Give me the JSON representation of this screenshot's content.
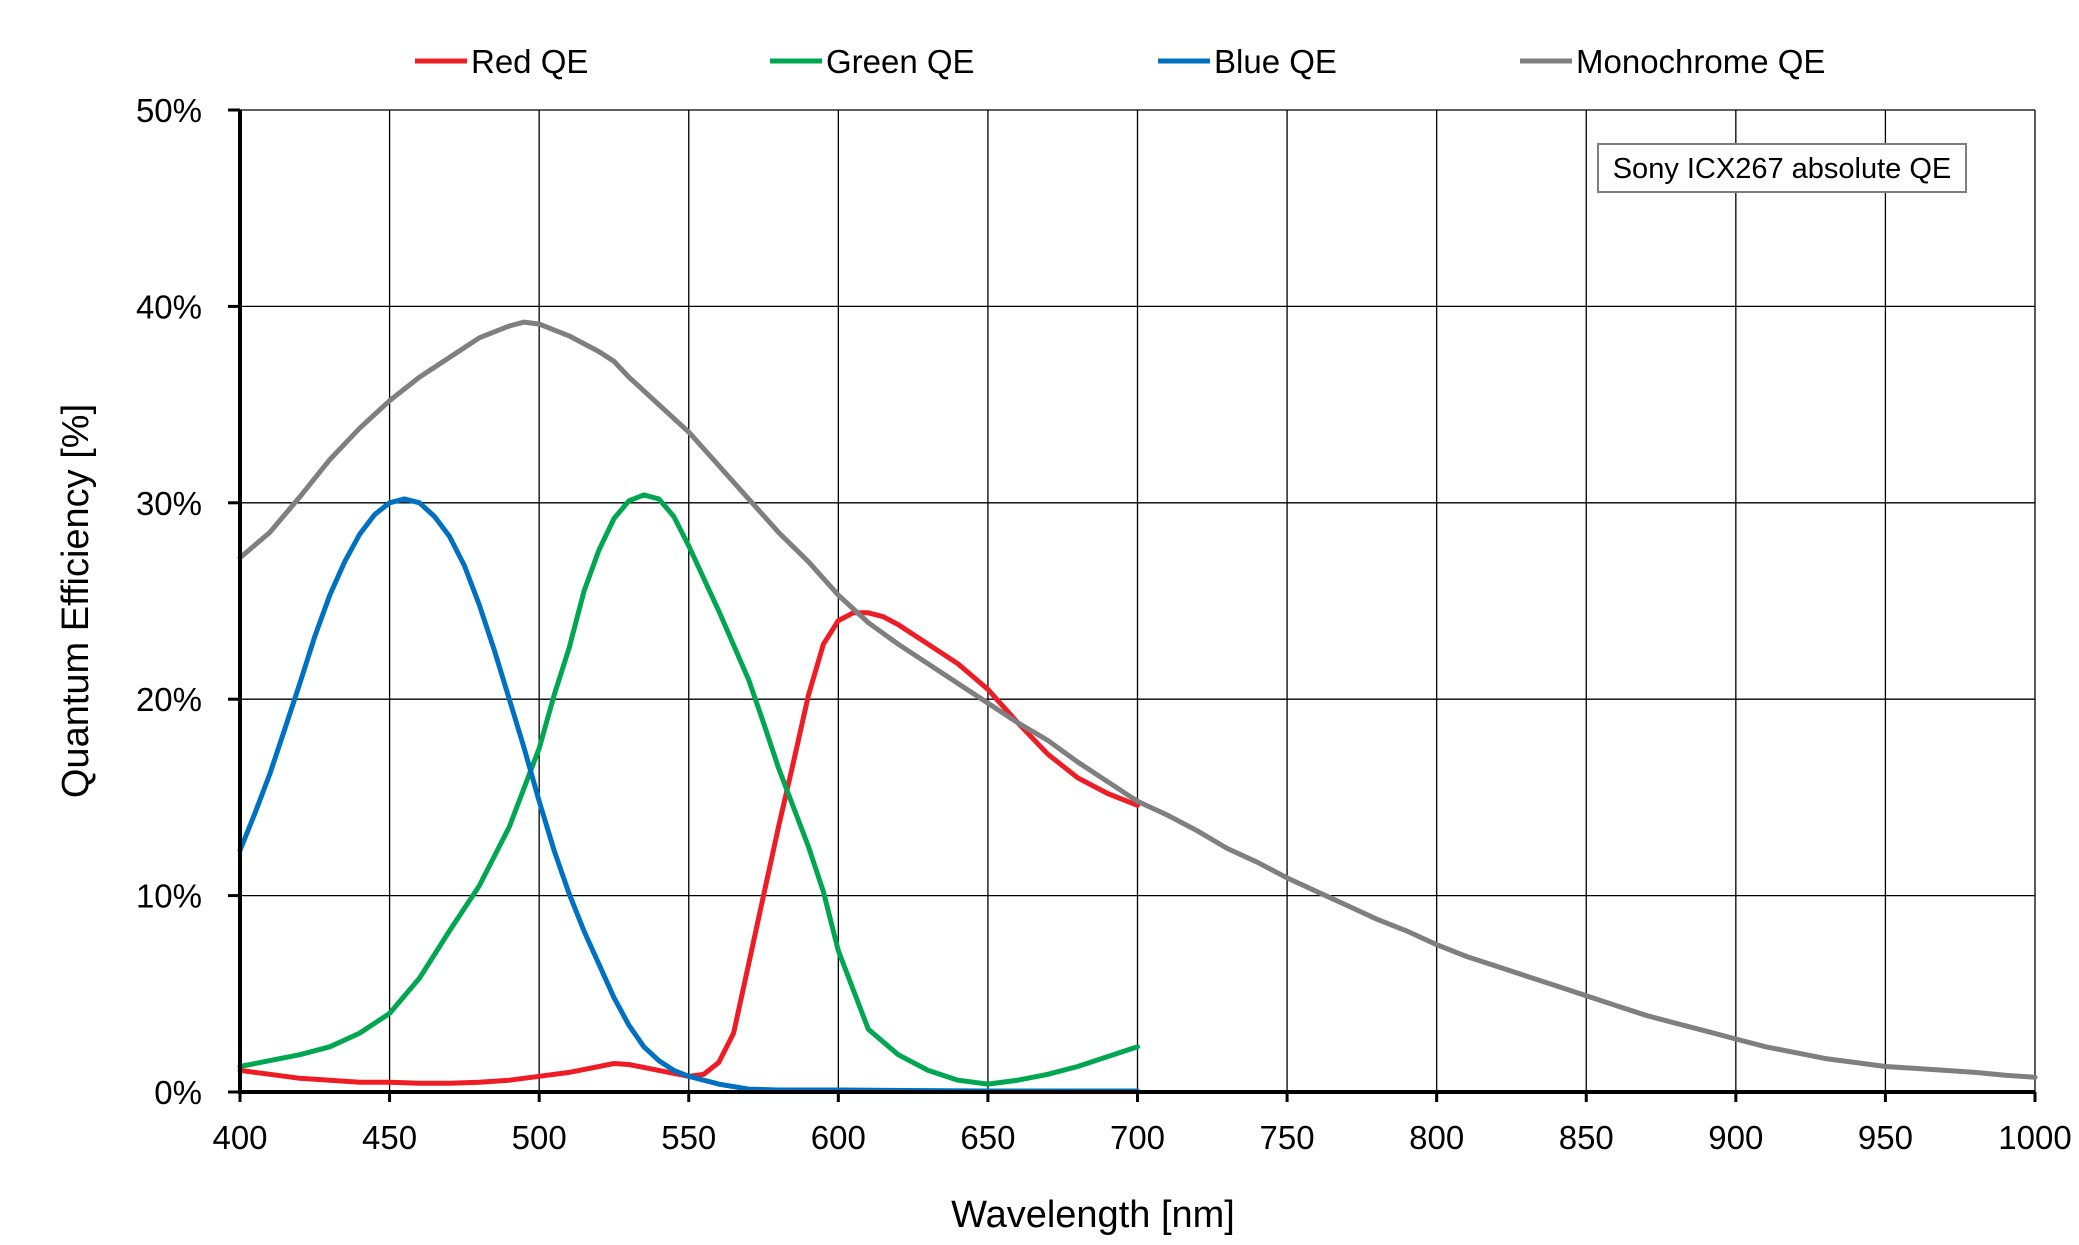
{
  "chart_data": {
    "type": "line",
    "title": "",
    "xlabel": "Wavelength [nm]",
    "ylabel": "Quantum Efficiency [%]",
    "xlim": [
      400,
      1000
    ],
    "ylim": [
      0,
      50
    ],
    "x_ticks": [
      400,
      450,
      500,
      550,
      600,
      650,
      700,
      750,
      800,
      850,
      900,
      950,
      1000
    ],
    "y_ticks": [
      0,
      10,
      20,
      30,
      40,
      50
    ],
    "y_tick_labels": [
      "0%",
      "10%",
      "20%",
      "30%",
      "40%",
      "50%"
    ],
    "grid": true,
    "legend_position": "top",
    "annotation": "Sony ICX267 absolute QE",
    "series": [
      {
        "name": "Red QE",
        "color": "#ee1c25",
        "points": [
          [
            400,
            1.1
          ],
          [
            410,
            0.9
          ],
          [
            420,
            0.7
          ],
          [
            430,
            0.6
          ],
          [
            440,
            0.5
          ],
          [
            450,
            0.5
          ],
          [
            460,
            0.45
          ],
          [
            470,
            0.45
          ],
          [
            480,
            0.5
          ],
          [
            490,
            0.6
          ],
          [
            500,
            0.8
          ],
          [
            510,
            1.0
          ],
          [
            520,
            1.3
          ],
          [
            525,
            1.45
          ],
          [
            530,
            1.4
          ],
          [
            540,
            1.1
          ],
          [
            550,
            0.8
          ],
          [
            555,
            0.9
          ],
          [
            560,
            1.5
          ],
          [
            565,
            3.0
          ],
          [
            570,
            6.5
          ],
          [
            575,
            10.0
          ],
          [
            580,
            13.5
          ],
          [
            585,
            16.8
          ],
          [
            590,
            20.2
          ],
          [
            595,
            22.8
          ],
          [
            600,
            24.0
          ],
          [
            605,
            24.4
          ],
          [
            610,
            24.4
          ],
          [
            615,
            24.2
          ],
          [
            620,
            23.8
          ],
          [
            630,
            22.8
          ],
          [
            640,
            21.8
          ],
          [
            650,
            20.5
          ],
          [
            660,
            18.8
          ],
          [
            670,
            17.2
          ],
          [
            680,
            16.0
          ],
          [
            690,
            15.2
          ],
          [
            700,
            14.6
          ]
        ]
      },
      {
        "name": "Green QE",
        "color": "#00a650",
        "points": [
          [
            400,
            1.3
          ],
          [
            410,
            1.6
          ],
          [
            420,
            1.9
          ],
          [
            430,
            2.3
          ],
          [
            440,
            3.0
          ],
          [
            450,
            4.0
          ],
          [
            460,
            5.8
          ],
          [
            470,
            8.2
          ],
          [
            480,
            10.5
          ],
          [
            490,
            13.5
          ],
          [
            500,
            17.5
          ],
          [
            505,
            20.2
          ],
          [
            510,
            22.6
          ],
          [
            515,
            25.5
          ],
          [
            520,
            27.6
          ],
          [
            525,
            29.2
          ],
          [
            530,
            30.1
          ],
          [
            535,
            30.4
          ],
          [
            540,
            30.2
          ],
          [
            545,
            29.3
          ],
          [
            550,
            27.8
          ],
          [
            560,
            24.5
          ],
          [
            570,
            21.0
          ],
          [
            575,
            18.8
          ],
          [
            580,
            16.5
          ],
          [
            590,
            12.5
          ],
          [
            595,
            10.2
          ],
          [
            600,
            7.2
          ],
          [
            605,
            5.2
          ],
          [
            610,
            3.2
          ],
          [
            620,
            1.9
          ],
          [
            630,
            1.1
          ],
          [
            640,
            0.6
          ],
          [
            650,
            0.4
          ],
          [
            660,
            0.6
          ],
          [
            670,
            0.9
          ],
          [
            680,
            1.3
          ],
          [
            690,
            1.8
          ],
          [
            700,
            2.3
          ]
        ]
      },
      {
        "name": "Blue QE",
        "color": "#0070c0",
        "points": [
          [
            400,
            12.3
          ],
          [
            405,
            14.2
          ],
          [
            410,
            16.2
          ],
          [
            415,
            18.5
          ],
          [
            420,
            20.8
          ],
          [
            425,
            23.2
          ],
          [
            430,
            25.3
          ],
          [
            435,
            27.0
          ],
          [
            440,
            28.4
          ],
          [
            445,
            29.4
          ],
          [
            450,
            30.0
          ],
          [
            455,
            30.2
          ],
          [
            460,
            30.0
          ],
          [
            465,
            29.3
          ],
          [
            470,
            28.3
          ],
          [
            475,
            26.8
          ],
          [
            480,
            24.8
          ],
          [
            485,
            22.5
          ],
          [
            490,
            20.0
          ],
          [
            495,
            17.5
          ],
          [
            500,
            14.8
          ],
          [
            505,
            12.3
          ],
          [
            510,
            10.1
          ],
          [
            515,
            8.2
          ],
          [
            520,
            6.5
          ],
          [
            525,
            4.8
          ],
          [
            530,
            3.4
          ],
          [
            535,
            2.3
          ],
          [
            540,
            1.6
          ],
          [
            545,
            1.1
          ],
          [
            550,
            0.8
          ],
          [
            560,
            0.4
          ],
          [
            570,
            0.15
          ],
          [
            580,
            0.1
          ],
          [
            600,
            0.1
          ],
          [
            650,
            0.05
          ],
          [
            700,
            0.05
          ]
        ]
      },
      {
        "name": "Monochrome QE",
        "color": "#7f7f7f",
        "points": [
          [
            400,
            27.2
          ],
          [
            410,
            28.5
          ],
          [
            420,
            30.3
          ],
          [
            430,
            32.2
          ],
          [
            440,
            33.8
          ],
          [
            450,
            35.2
          ],
          [
            460,
            36.4
          ],
          [
            470,
            37.4
          ],
          [
            480,
            38.4
          ],
          [
            490,
            39.0
          ],
          [
            495,
            39.2
          ],
          [
            500,
            39.1
          ],
          [
            510,
            38.5
          ],
          [
            520,
            37.7
          ],
          [
            525,
            37.2
          ],
          [
            530,
            36.4
          ],
          [
            540,
            35.0
          ],
          [
            550,
            33.6
          ],
          [
            560,
            31.9
          ],
          [
            570,
            30.2
          ],
          [
            580,
            28.5
          ],
          [
            590,
            27.0
          ],
          [
            600,
            25.3
          ],
          [
            610,
            23.9
          ],
          [
            620,
            22.8
          ],
          [
            630,
            21.8
          ],
          [
            640,
            20.8
          ],
          [
            650,
            19.8
          ],
          [
            660,
            18.8
          ],
          [
            670,
            17.9
          ],
          [
            680,
            16.8
          ],
          [
            690,
            15.8
          ],
          [
            700,
            14.8
          ],
          [
            710,
            14.1
          ],
          [
            720,
            13.3
          ],
          [
            730,
            12.4
          ],
          [
            740,
            11.7
          ],
          [
            750,
            10.9
          ],
          [
            760,
            10.2
          ],
          [
            770,
            9.5
          ],
          [
            780,
            8.8
          ],
          [
            790,
            8.2
          ],
          [
            800,
            7.5
          ],
          [
            810,
            6.9
          ],
          [
            820,
            6.4
          ],
          [
            830,
            5.9
          ],
          [
            840,
            5.4
          ],
          [
            850,
            4.9
          ],
          [
            860,
            4.4
          ],
          [
            870,
            3.9
          ],
          [
            880,
            3.5
          ],
          [
            890,
            3.1
          ],
          [
            900,
            2.7
          ],
          [
            910,
            2.3
          ],
          [
            920,
            2.0
          ],
          [
            930,
            1.7
          ],
          [
            940,
            1.5
          ],
          [
            950,
            1.3
          ],
          [
            960,
            1.2
          ],
          [
            970,
            1.1
          ],
          [
            980,
            1.0
          ],
          [
            990,
            0.85
          ],
          [
            1000,
            0.75
          ]
        ]
      }
    ]
  }
}
